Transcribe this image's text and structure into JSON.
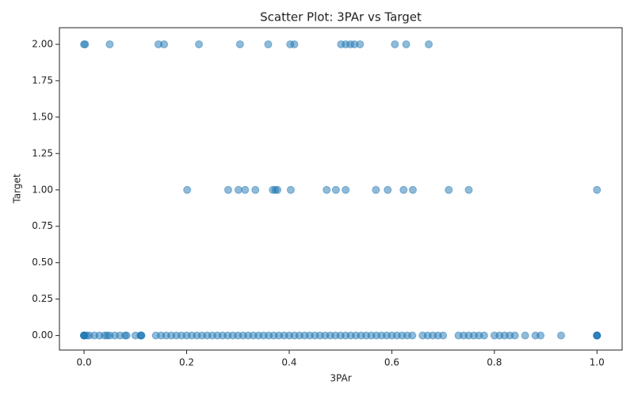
{
  "chart_data": {
    "type": "scatter",
    "title": "Scatter Plot: 3PAr vs Target",
    "x_label": "3PAr",
    "y_label": "Target",
    "color": "#1f77b4",
    "alpha": 0.5,
    "xlim": [
      -0.048,
      1.049
    ],
    "ylim": [
      -0.1,
      2.114
    ],
    "xticks": [
      {
        "value": 0,
        "label": "0.0"
      },
      {
        "value": 0.2,
        "label": "0.2"
      },
      {
        "value": 0.4,
        "label": "0.4"
      },
      {
        "value": 0.6,
        "label": "0.6"
      },
      {
        "value": 0.8,
        "label": "0.8"
      },
      {
        "value": 1,
        "label": "1.0"
      }
    ],
    "yticks": [
      {
        "value": 0,
        "label": "0.00"
      },
      {
        "value": 0.25,
        "label": "0.25"
      },
      {
        "value": 0.5,
        "label": "0.50"
      },
      {
        "value": 0.75,
        "label": "0.75"
      },
      {
        "value": 1,
        "label": "1.00"
      },
      {
        "value": 1.25,
        "label": "1.25"
      },
      {
        "value": 1.5,
        "label": "1.50"
      },
      {
        "value": 1.75,
        "label": "1.75"
      },
      {
        "value": 2,
        "label": "2.00"
      }
    ],
    "x": [
      0,
      0.002,
      0.05,
      0.145,
      0.156,
      0.224,
      0.304,
      0.359,
      0.402,
      0.41,
      0.501,
      0.51,
      0.519,
      0.527,
      0.538,
      0.606,
      0.628,
      0.672,
      0.201,
      0.281,
      0.301,
      0.314,
      0.334,
      0.368,
      0.373,
      0.377,
      0.403,
      0.473,
      0.491,
      0.51,
      0.569,
      0.592,
      0.623,
      0.641,
      0.711,
      0.75,
      1,
      0,
      0,
      0,
      0,
      0.005,
      0.01,
      0.02,
      0.03,
      0.04,
      0.045,
      0.05,
      0.06,
      0.07,
      0.08,
      0.083,
      0.1,
      0.11,
      0.111,
      0.112,
      0.14,
      0.15,
      0.16,
      0.17,
      0.18,
      0.19,
      0.2,
      0.21,
      0.22,
      0.23,
      0.24,
      0.25,
      0.26,
      0.27,
      0.28,
      0.29,
      0.3,
      0.31,
      0.32,
      0.33,
      0.34,
      0.35,
      0.36,
      0.37,
      0.38,
      0.39,
      0.4,
      0.41,
      0.42,
      0.43,
      0.44,
      0.45,
      0.46,
      0.47,
      0.48,
      0.49,
      0.5,
      0.51,
      0.52,
      0.53,
      0.54,
      0.55,
      0.56,
      0.57,
      0.58,
      0.59,
      0.6,
      0.61,
      0.62,
      0.63,
      0.64,
      0.66,
      0.67,
      0.68,
      0.69,
      0.7,
      0.73,
      0.74,
      0.75,
      0.76,
      0.77,
      0.78,
      0.8,
      0.81,
      0.82,
      0.83,
      0.84,
      0.86,
      0.88,
      0.89,
      0.93,
      1,
      1,
      1,
      1
    ],
    "y": [
      2,
      2,
      2,
      2,
      2,
      2,
      2,
      2,
      2,
      2,
      2,
      2,
      2,
      2,
      2,
      2,
      2,
      2,
      1,
      1,
      1,
      1,
      1,
      1,
      1,
      1,
      1,
      1,
      1,
      1,
      1,
      1,
      1,
      1,
      1,
      1,
      1,
      0,
      0,
      0,
      0,
      0,
      0,
      0,
      0,
      0,
      0,
      0,
      0,
      0,
      0,
      0,
      0,
      0,
      0,
      0,
      0,
      0,
      0,
      0,
      0,
      0,
      0,
      0,
      0,
      0,
      0,
      0,
      0,
      0,
      0,
      0,
      0,
      0,
      0,
      0,
      0,
      0,
      0,
      0,
      0,
      0,
      0,
      0,
      0,
      0,
      0,
      0,
      0,
      0,
      0,
      0,
      0,
      0,
      0,
      0,
      0,
      0,
      0,
      0,
      0,
      0,
      0,
      0,
      0,
      0,
      0,
      0,
      0,
      0,
      0,
      0,
      0,
      0,
      0,
      0,
      0,
      0,
      0,
      0,
      0,
      0,
      0,
      0,
      0,
      0,
      0,
      0,
      0,
      0,
      0
    ]
  }
}
